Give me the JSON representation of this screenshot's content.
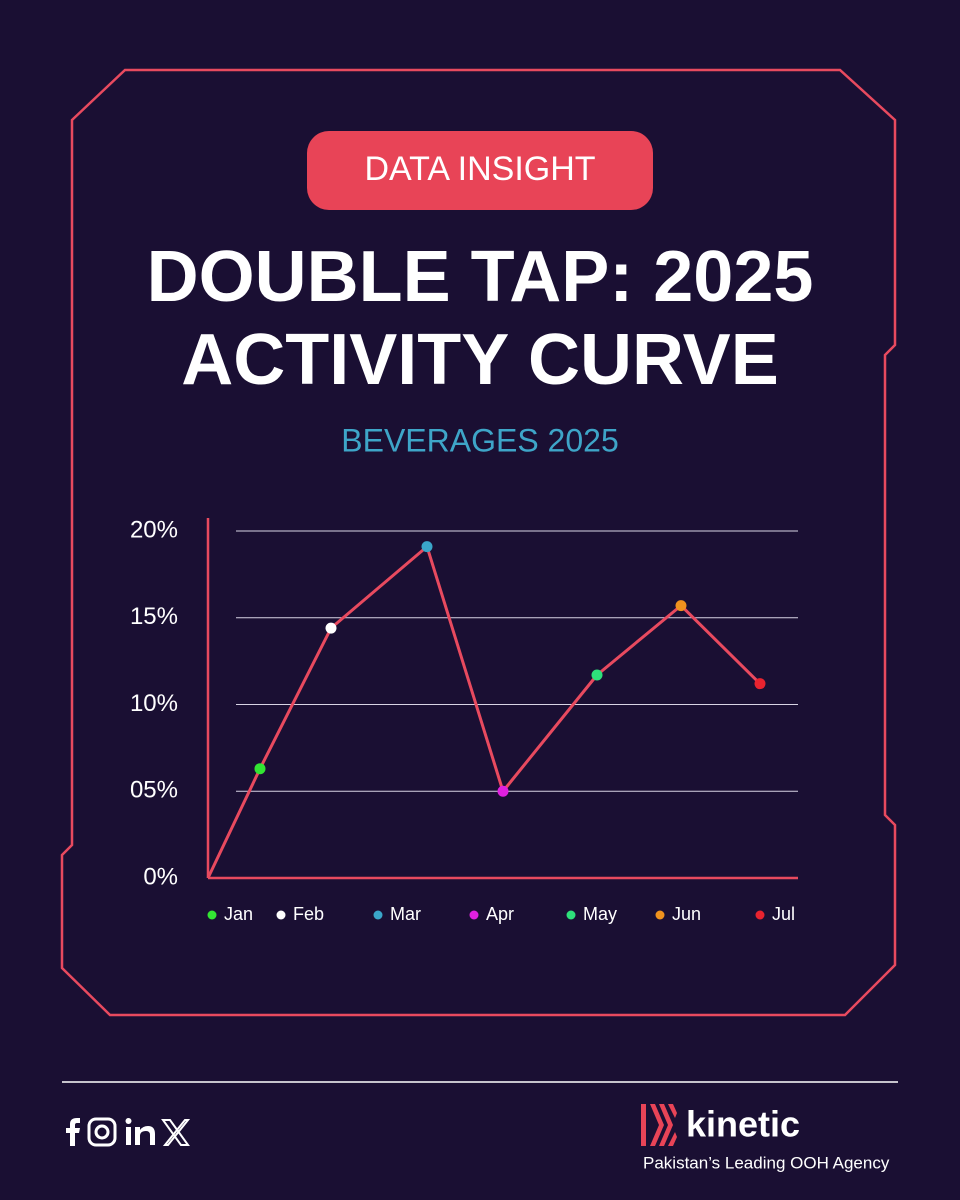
{
  "badge": "DATA INSIGHT",
  "chart_data": {
    "type": "line",
    "title": [
      "DOUBLE TAP: 2025",
      "ACTIVITY CURVE"
    ],
    "subtitle": "BEVERAGES 2025",
    "categories": [
      null,
      "Jan",
      "Feb",
      "Mar",
      "Apr",
      "May",
      "Jun",
      "Jul"
    ],
    "values": [
      0,
      6.3,
      14.4,
      19.1,
      5,
      11.7,
      15.7,
      11.2
    ],
    "color": "#e84a5f",
    "point_colors": [
      null,
      "#33e533",
      "#ffffff",
      "#3aa6c9",
      "#e020e0",
      "#2ee07a",
      "#f0921e",
      "#e8232f"
    ],
    "ylim": [
      0,
      20
    ],
    "yticks": [
      {
        "value": 0,
        "label": "0%"
      },
      {
        "value": 5,
        "label": "05%"
      },
      {
        "value": 10,
        "label": "10%"
      },
      {
        "value": 15,
        "label": "15%"
      },
      {
        "value": 20,
        "label": "20%"
      }
    ],
    "grid": true
  },
  "footer": {
    "brand": "kinetic",
    "tagline": "Pakistan’s Leading OOH Agency"
  }
}
